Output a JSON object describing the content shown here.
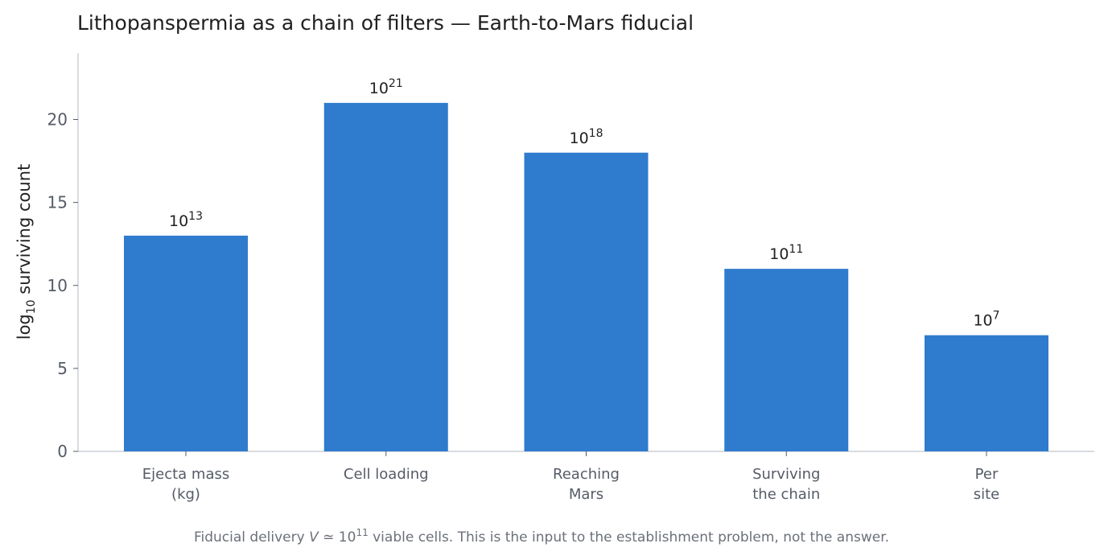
{
  "chart_data": {
    "type": "bar",
    "title": "Lithopanspermia as a chain of filters — Earth-to-Mars fiducial",
    "ylabel_main": "log",
    "ylabel_sub": "10",
    "ylabel_rest": " surviving count",
    "categories": [
      [
        "Ejecta mass",
        "(kg)"
      ],
      [
        "Cell loading"
      ],
      [
        "Reaching",
        "Mars"
      ],
      [
        "Surviving",
        "the chain"
      ],
      [
        "Per",
        "site"
      ]
    ],
    "values": [
      13,
      21,
      18,
      11,
      7
    ],
    "value_labels": [
      {
        "base": "10",
        "exp": "13"
      },
      {
        "base": "10",
        "exp": "21"
      },
      {
        "base": "10",
        "exp": "18"
      },
      {
        "base": "10",
        "exp": "11"
      },
      {
        "base": "10",
        "exp": "7"
      }
    ],
    "ylim": [
      0,
      24
    ],
    "yticks": [
      0,
      5,
      10,
      15,
      20
    ],
    "grid": false,
    "bar_color": "#2f7bcd",
    "axis_color": "#c0c4cc",
    "footnote": {
      "pre": "Fiducial delivery ",
      "var": "V",
      "rel": " ≃ ",
      "base": "10",
      "exp": "11",
      "post": " viable cells. This is the input to the establishment problem, not the answer."
    }
  }
}
